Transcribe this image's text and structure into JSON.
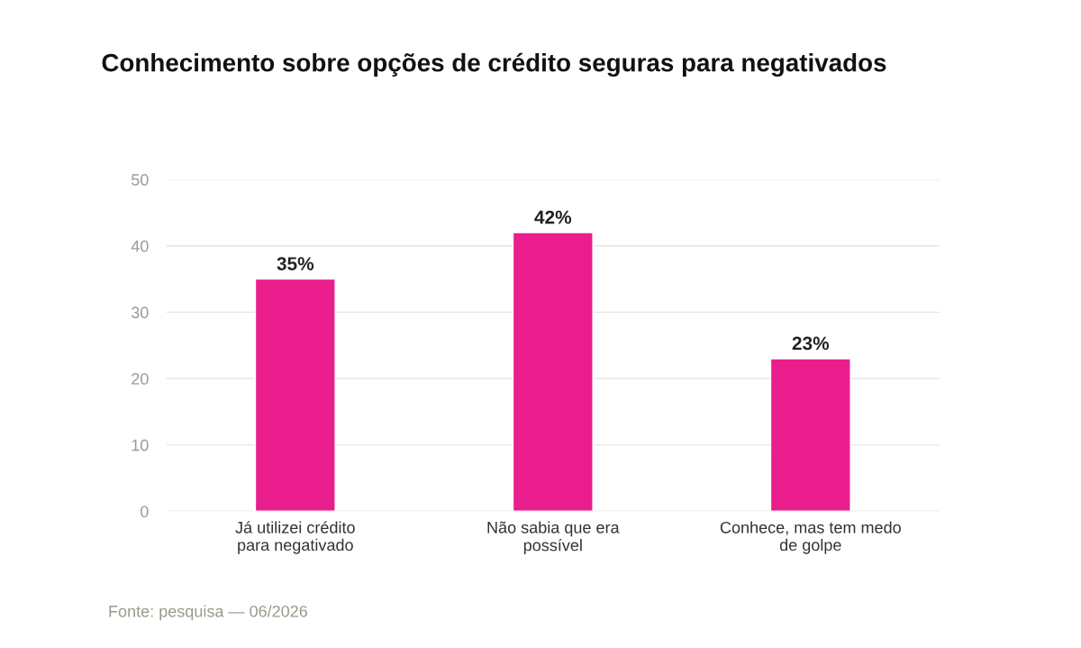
{
  "chart_data": {
    "type": "bar",
    "title": "Conhecimento sobre opções de crédito seguras para negativados",
    "categories": [
      "Já utilizei crédito\npara negativado",
      "Não sabia que era\npossível",
      "Conhece, mas tem medo\nde golpe"
    ],
    "values": [
      35,
      42,
      23
    ],
    "value_labels": [
      "35%",
      "42%",
      "23%"
    ],
    "color": "#e91e8c",
    "ylim": [
      0,
      50
    ],
    "yticks": [
      0,
      10,
      20,
      30,
      40,
      50
    ],
    "grid": "y",
    "legend": false,
    "annotations": [
      "Fonte: pesquisa — 06/2026"
    ]
  }
}
